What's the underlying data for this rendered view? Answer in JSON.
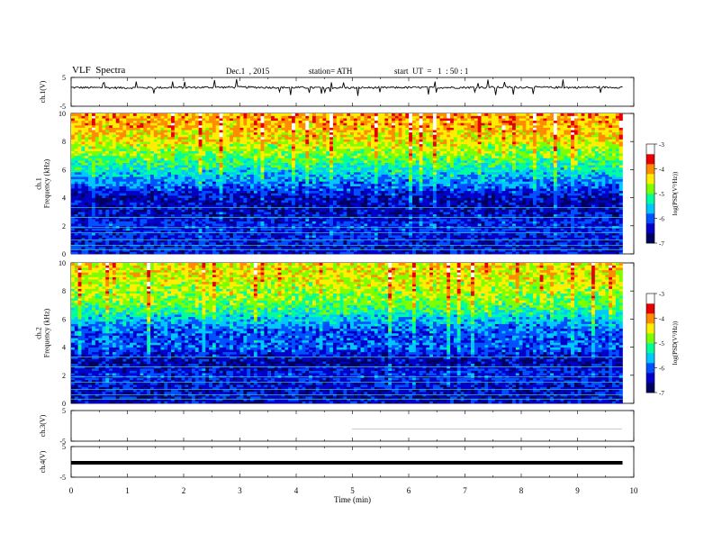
{
  "header": {
    "title": "VLF  Spectra",
    "date": "Dec.1  , 2015",
    "station": "station= ATH",
    "start": "start  UT  =   1  : 50 : 1"
  },
  "colors": {
    "colormap": [
      "#000060",
      "#0000c8",
      "#0050ff",
      "#00c8ff",
      "#00ff9a",
      "#7dff00",
      "#ffee00",
      "#ff8c00",
      "#e80000",
      "#ffffff"
    ]
  },
  "chart_data": [
    {
      "type": "line",
      "panel": "ch1-voltage",
      "ylabel": "ch.1(V)",
      "ylim": [
        -5,
        5
      ],
      "yticks": [
        "5",
        "-5"
      ],
      "xlim": [
        0,
        10
      ],
      "description_level": "trace near +2 V with frequent spikes",
      "x": [
        0,
        1,
        2,
        3,
        4,
        5,
        6,
        7,
        8,
        9,
        9.8
      ],
      "y": [
        1.5,
        1.4,
        1.5,
        1.6,
        1.5,
        1.4,
        1.5,
        1.5,
        1.6,
        1.5,
        1.6
      ]
    },
    {
      "type": "heatmap",
      "panel": "ch1-spectrogram",
      "ylabel": "ch.1\nFrequency  (kHz)",
      "ylim": [
        0,
        10
      ],
      "yticks": [
        "0",
        "2",
        "4",
        "6",
        "8",
        "10"
      ],
      "xlim": [
        0,
        9.8
      ],
      "colorbar": {
        "label": "log(PSD(V²/Hz))",
        "range": [
          -7,
          -3
        ],
        "ticks": [
          "-3",
          "-4",
          "-5",
          "-6",
          "-7"
        ]
      },
      "freq_khz": [
        0,
        1,
        2,
        3,
        4,
        5,
        6,
        7,
        8,
        9,
        10
      ],
      "log_psd_mean": [
        -6.4,
        -6.3,
        -6.2,
        -6.5,
        -6.5,
        -5.9,
        -5.4,
        -4.9,
        -4.5,
        -4.2,
        -4.1
      ]
    },
    {
      "type": "heatmap",
      "panel": "ch2-spectrogram",
      "ylabel": "ch.2\nFrequency  (kHz)",
      "ylim": [
        0,
        10
      ],
      "yticks": [
        "0",
        "2",
        "4",
        "6",
        "8",
        "10"
      ],
      "xlim": [
        0,
        9.8
      ],
      "colorbar": {
        "label": "log(PSD(V²/Hz))",
        "range": [
          -7,
          -3
        ],
        "ticks": [
          "-3",
          "-4",
          "-5",
          "-6",
          "-7"
        ]
      },
      "freq_khz": [
        0,
        1,
        2,
        3,
        4,
        5,
        6,
        7,
        8,
        9,
        10
      ],
      "log_psd_mean": [
        -6.5,
        -6.4,
        -6.2,
        -6.6,
        -6.0,
        -6.1,
        -5.6,
        -5.0,
        -4.7,
        -4.5,
        -4.4
      ]
    },
    {
      "type": "line",
      "panel": "ch3-voltage",
      "ylabel": "ch.3(V)",
      "ylim": [
        -5,
        5
      ],
      "yticks": [
        "5",
        "-5"
      ],
      "xlim": [
        0,
        10
      ],
      "x": [
        5.0,
        9.8
      ],
      "y": [
        -1.0,
        -1.0
      ]
    },
    {
      "type": "line",
      "panel": "ch4-voltage",
      "ylabel": "ch.4(V)",
      "ylim": [
        -5,
        5
      ],
      "yticks": [
        "5",
        "-5"
      ],
      "xlim": [
        0,
        10
      ],
      "x": [
        0,
        9.8
      ],
      "y": [
        -0.3,
        -0.3
      ]
    }
  ],
  "xaxis": {
    "label": "Time  (min)",
    "ticks": [
      "0",
      "1",
      "2",
      "3",
      "4",
      "5",
      "6",
      "7",
      "8",
      "9",
      "10"
    ],
    "values": [
      0,
      1,
      2,
      3,
      4,
      5,
      6,
      7,
      8,
      9,
      10
    ]
  }
}
